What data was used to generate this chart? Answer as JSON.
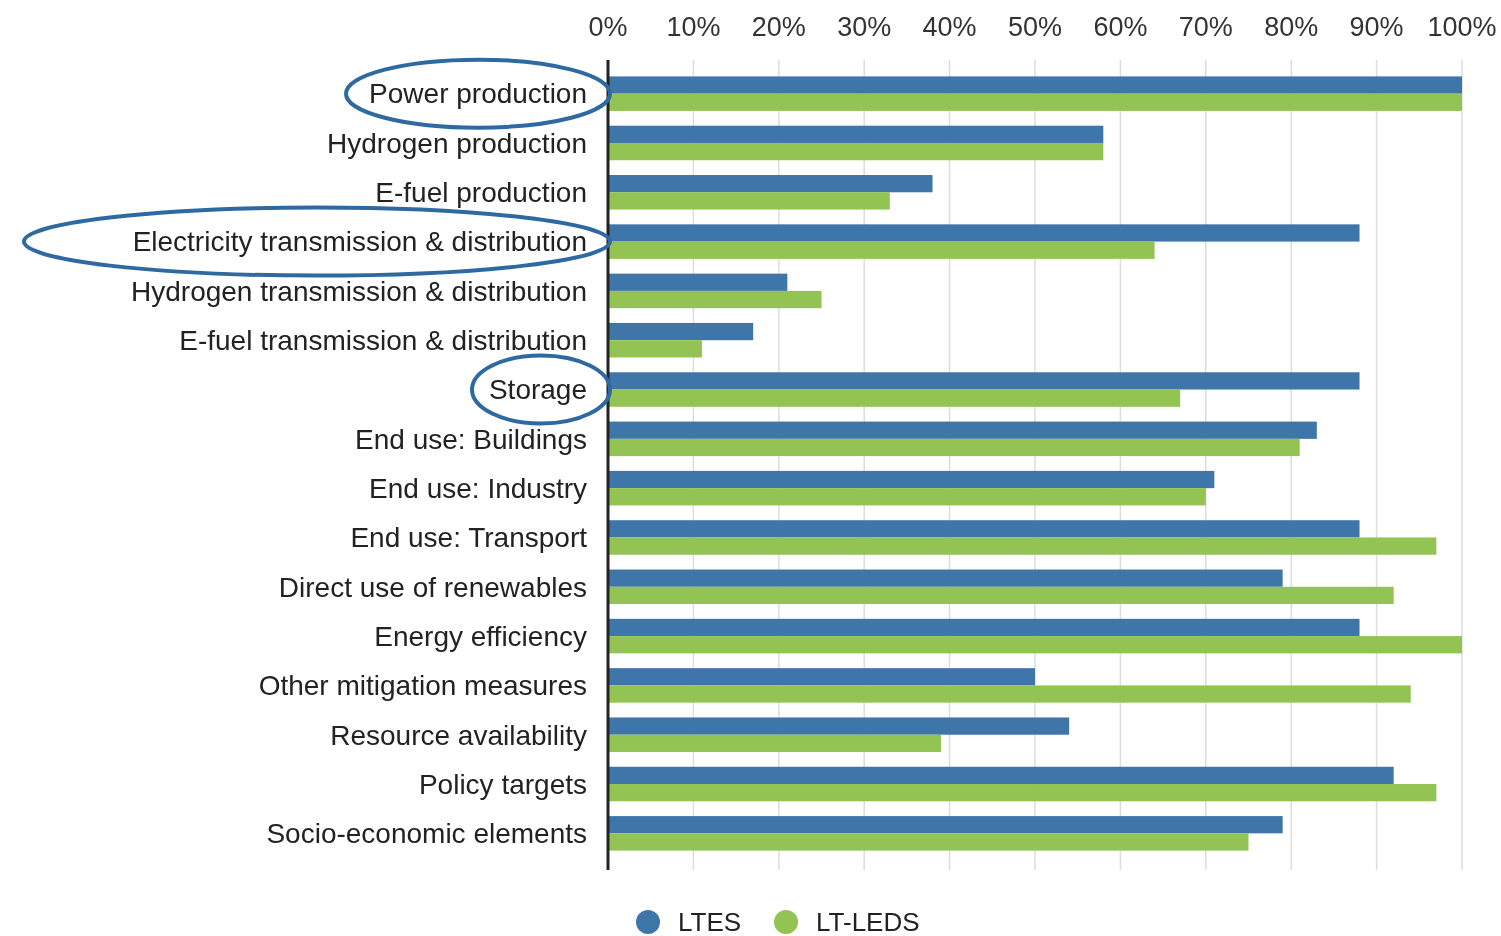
{
  "chart_data": {
    "type": "bar",
    "orientation": "horizontal",
    "categories": [
      "Power production",
      "Hydrogen production",
      "E-fuel production",
      "Electricity transmission & distribution",
      "Hydrogen transmission & distribution",
      "E-fuel transmission & distribution",
      "Storage",
      "End use: Buildings",
      "End use: Industry",
      "End use: Transport",
      "Direct use of renewables",
      "Energy efficiency",
      "Other mitigation measures",
      "Resource availability",
      "Policy targets",
      "Socio-economic elements"
    ],
    "series": [
      {
        "name": "LTES",
        "color": "#3f76aa",
        "values": [
          100,
          58,
          38,
          88,
          21,
          17,
          88,
          83,
          71,
          88,
          79,
          88,
          50,
          54,
          92,
          79
        ]
      },
      {
        "name": "LT-LEDS",
        "color": "#92c353",
        "values": [
          100,
          58,
          33,
          64,
          25,
          11,
          67,
          81,
          70,
          97,
          92,
          100,
          94,
          39,
          97,
          75
        ]
      }
    ],
    "xlim": [
      0,
      100
    ],
    "xticks": [
      {
        "value": 0,
        "label": "0%"
      },
      {
        "value": 10,
        "label": "10%"
      },
      {
        "value": 20,
        "label": "20%"
      },
      {
        "value": 30,
        "label": "30%"
      },
      {
        "value": 40,
        "label": "40%"
      },
      {
        "value": 50,
        "label": "50%"
      },
      {
        "value": 60,
        "label": "60%"
      },
      {
        "value": 70,
        "label": "70%"
      },
      {
        "value": 80,
        "label": "80%"
      },
      {
        "value": 90,
        "label": "90%"
      },
      {
        "value": 100,
        "label": "100%"
      }
    ],
    "grid": "x",
    "legend": "bottom"
  }
}
